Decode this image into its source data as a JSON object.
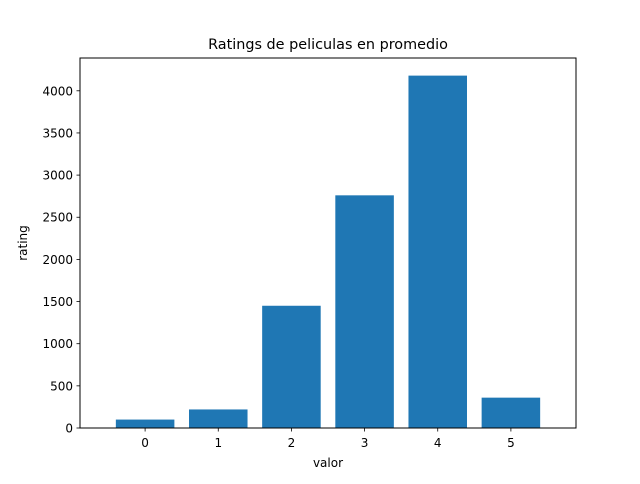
{
  "chart_data": {
    "type": "bar",
    "title": "Ratings de peliculas en promedio",
    "xlabel": "valor",
    "ylabel": "rating",
    "categories": [
      "0",
      "1",
      "2",
      "3",
      "4",
      "5"
    ],
    "values": [
      100,
      220,
      1450,
      2760,
      4180,
      360
    ],
    "yticks": [
      0,
      500,
      1000,
      1500,
      2000,
      2500,
      3000,
      3500,
      4000
    ],
    "ytick_labels": [
      "0",
      "500",
      "1000",
      "1500",
      "2000",
      "2500",
      "3000",
      "3500",
      "4000"
    ],
    "ylim": [
      0,
      4389
    ],
    "xlim": [
      -0.89,
      5.89
    ],
    "bar_width": 0.8,
    "bar_color": "#1f77b4",
    "grid": false,
    "legend": false
  }
}
